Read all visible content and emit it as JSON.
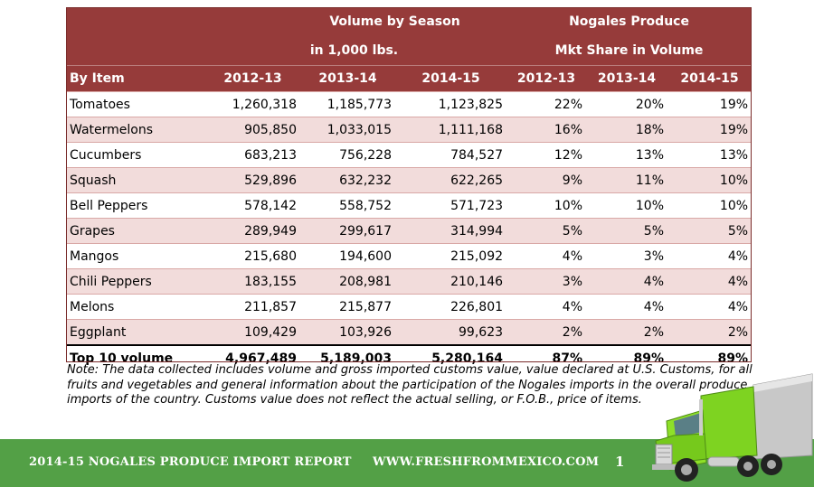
{
  "header": {
    "volume_title": "Volume by Season",
    "volume_sub": "in 1,000 lbs.",
    "share_title": "Nogales Produce",
    "share_sub": "Mkt  Share in Volume",
    "columns": [
      "By Item",
      "2012-13",
      "2013-14",
      "2014-15",
      "2012-13",
      "2013-14",
      "2014-15"
    ]
  },
  "rows": [
    {
      "item": "Tomatoes",
      "v1": "1,260,318",
      "v2": "1,185,773",
      "v3": "1,123,825",
      "s1": "22%",
      "s2": "20%",
      "s3": "19%"
    },
    {
      "item": "Watermelons",
      "v1": "905,850",
      "v2": "1,033,015",
      "v3": "1,111,168",
      "s1": "16%",
      "s2": "18%",
      "s3": "19%"
    },
    {
      "item": "Cucumbers",
      "v1": "683,213",
      "v2": "756,228",
      "v3": "784,527",
      "s1": "12%",
      "s2": "13%",
      "s3": "13%"
    },
    {
      "item": "Squash",
      "v1": "529,896",
      "v2": "632,232",
      "v3": "622,265",
      "s1": "9%",
      "s2": "11%",
      "s3": "10%"
    },
    {
      "item": "Bell Peppers",
      "v1": "578,142",
      "v2": "558,752",
      "v3": "571,723",
      "s1": "10%",
      "s2": "10%",
      "s3": "10%"
    },
    {
      "item": "Grapes",
      "v1": "289,949",
      "v2": "299,617",
      "v3": "314,994",
      "s1": "5%",
      "s2": "5%",
      "s3": "5%"
    },
    {
      "item": "Mangos",
      "v1": "215,680",
      "v2": "194,600",
      "v3": "215,092",
      "s1": "4%",
      "s2": "3%",
      "s3": "4%"
    },
    {
      "item": "Chili Peppers",
      "v1": "183,155",
      "v2": "208,981",
      "v3": "210,146",
      "s1": "3%",
      "s2": "4%",
      "s3": "4%"
    },
    {
      "item": "Melons",
      "v1": "211,857",
      "v2": "215,877",
      "v3": "226,801",
      "s1": "4%",
      "s2": "4%",
      "s3": "4%"
    },
    {
      "item": "Eggplant",
      "v1": "109,429",
      "v2": "103,926",
      "v3": "99,623",
      "s1": "2%",
      "s2": "2%",
      "s3": "2%"
    }
  ],
  "total": {
    "item": "Top 10 volume",
    "v1": "4,967,489",
    "v2": "5,189,003",
    "v3": "5,280,164",
    "s1": "87%",
    "s2": "89%",
    "s3": "89%"
  },
  "note": "Note: The data collected includes volume and gross imported customs value, value declared at U.S. Customs, for all fruits and vegetables and general information about the participation of the Nogales imports in the overall produce imports of the country. Customs value does not reflect the actual selling, or F.O.B., price of items.",
  "footer": {
    "report_title": "2014-15 NOGALES PRODUCE IMPORT REPORT",
    "website": "WWW.FRESHFROMMEXICO.COM",
    "page_number": "1"
  },
  "colors": {
    "header_bg": "#963b3a",
    "stripe": "#f2dcdb",
    "footer_bg": "#53a046",
    "truck": "#7ed321"
  }
}
